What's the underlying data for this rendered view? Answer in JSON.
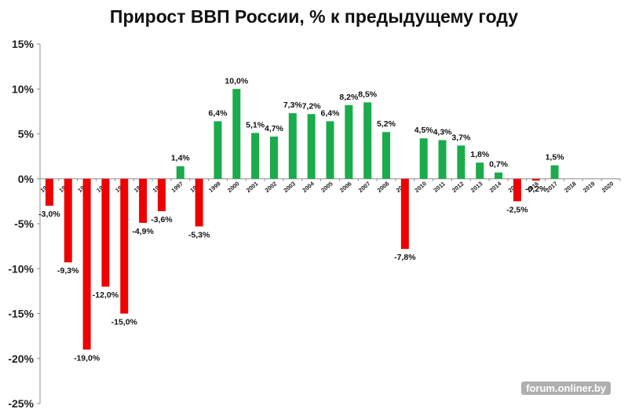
{
  "chart_data": {
    "type": "bar",
    "title": "Прирост ВВП России, % к предыдущему году",
    "categories": [
      "1990",
      "1991",
      "1992",
      "1993",
      "1994",
      "1995",
      "1996",
      "1997",
      "1998",
      "1999",
      "2000",
      "2001",
      "2002",
      "2003",
      "2004",
      "2005",
      "2006",
      "2007",
      "2008",
      "2009",
      "2010",
      "2011",
      "2012",
      "2013",
      "2014",
      "2015",
      "2016",
      "2017",
      "2018",
      "2019",
      "2020"
    ],
    "values": [
      -3.0,
      -9.3,
      -19.0,
      -12.0,
      -15.0,
      -4.9,
      -3.6,
      1.4,
      -5.3,
      6.4,
      10.0,
      5.1,
      4.7,
      7.3,
      7.2,
      6.4,
      8.2,
      8.5,
      5.2,
      -7.8,
      4.5,
      4.3,
      3.7,
      1.8,
      0.7,
      -2.5,
      -0.2,
      1.5,
      null,
      null,
      null
    ],
    "data_labels": [
      "-3,0%",
      "-9,3%",
      "-19,0%",
      "-12,0%",
      "-15,0%",
      "-4,9%",
      "-3,6%",
      "1,4%",
      "-5,3%",
      "6,4%",
      "10,0%",
      "5,1%",
      "4,7%",
      "7,3%",
      "7,2%",
      "6,4%",
      "8,2%",
      "8,5%",
      "5,2%",
      "-7,8%",
      "4,5%",
      "4,3%",
      "3,7%",
      "1,8%",
      "0,7%",
      "-2,5%",
      "-0,2%",
      "1,5%",
      "",
      "",
      ""
    ],
    "y_ticks": [
      15,
      10,
      5,
      0,
      -5,
      -10,
      -15,
      -20,
      -25
    ],
    "y_tick_labels": [
      "15%",
      "10%",
      "5%",
      "0%",
      "-5%",
      "-10%",
      "-15%",
      "-20%",
      "-25%"
    ],
    "ylim": [
      -25,
      15
    ],
    "grid": false,
    "colors": {
      "positive": "#1aab4b",
      "negative": "#ee0000",
      "axis": "#8c8c8c"
    }
  },
  "watermark": "forum.onliner.by"
}
